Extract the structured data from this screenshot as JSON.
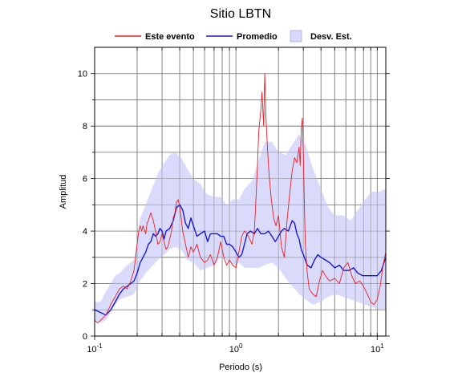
{
  "chart_data": {
    "type": "line",
    "title": "Sitio LBTN",
    "xlabel": "Periodo (s)",
    "ylabel": "Amplitud",
    "x_scale": "log",
    "xlim": [
      0.1,
      11.5
    ],
    "ylim": [
      0,
      11
    ],
    "x_ticks": [
      {
        "value": 0.1,
        "base": "10",
        "exp": "-1"
      },
      {
        "value": 1,
        "base": "10",
        "exp": "0"
      },
      {
        "value": 10,
        "base": "10",
        "exp": "1"
      }
    ],
    "y_ticks": [
      0,
      2,
      4,
      6,
      8,
      10
    ],
    "grid": true,
    "legend_position": "top",
    "legend": [
      {
        "label": "Este evento",
        "color": "#e8202a",
        "kind": "line"
      },
      {
        "label": "Promedio",
        "color": "#1a1ad6",
        "kind": "line"
      },
      {
        "label": "Desv. Est.",
        "color": "#d8d8fa",
        "kind": "patch"
      }
    ],
    "band": {
      "name": "Desv. Est.",
      "color": "#d8d8fa",
      "x": [
        0.1,
        0.11,
        0.12,
        0.13,
        0.14,
        0.15,
        0.17,
        0.19,
        0.21,
        0.23,
        0.25,
        0.28,
        0.31,
        0.34,
        0.37,
        0.41,
        0.45,
        0.5,
        0.56,
        0.62,
        0.7,
        0.78,
        0.86,
        0.95,
        1.05,
        1.15,
        1.3,
        1.45,
        1.6,
        1.8,
        2.0,
        2.25,
        2.5,
        2.8,
        3.1,
        3.5,
        4.0,
        4.5,
        5.0,
        5.7,
        6.5,
        7.3,
        8.2,
        9.2,
        10.3,
        11.5
      ],
      "lower": [
        0.6,
        0.5,
        0.6,
        0.9,
        1.2,
        1.4,
        1.5,
        1.6,
        2.1,
        2.4,
        2.6,
        2.9,
        3.1,
        3.3,
        3.4,
        3.3,
        2.9,
        2.8,
        2.5,
        2.6,
        2.7,
        3.0,
        2.9,
        2.7,
        2.8,
        2.6,
        2.6,
        2.6,
        2.7,
        2.8,
        2.6,
        2.2,
        1.9,
        1.6,
        1.4,
        1.2,
        1.3,
        1.5,
        1.6,
        1.5,
        1.4,
        1.3,
        1.2,
        1.1,
        1.0,
        1.0
      ],
      "upper": [
        1.3,
        1.3,
        1.7,
        2.0,
        2.3,
        2.4,
        2.7,
        2.9,
        4.5,
        5.0,
        5.5,
        6.2,
        6.6,
        6.9,
        7.0,
        6.8,
        6.4,
        6.0,
        5.8,
        5.4,
        5.3,
        5.3,
        5.0,
        5.2,
        5.2,
        5.6,
        5.9,
        6.7,
        7.4,
        7.4,
        7.0,
        6.9,
        7.3,
        7.7,
        7.3,
        6.4,
        5.6,
        4.9,
        4.6,
        4.6,
        4.4,
        4.8,
        5.2,
        5.5,
        5.5,
        5.6
      ]
    },
    "series": [
      {
        "name": "Promedio",
        "color": "#1a1ad6",
        "x": [
          0.1,
          0.11,
          0.12,
          0.13,
          0.14,
          0.15,
          0.16,
          0.17,
          0.18,
          0.19,
          0.2,
          0.21,
          0.22,
          0.23,
          0.24,
          0.25,
          0.26,
          0.27,
          0.28,
          0.29,
          0.3,
          0.31,
          0.32,
          0.34,
          0.36,
          0.38,
          0.4,
          0.42,
          0.44,
          0.46,
          0.48,
          0.5,
          0.53,
          0.56,
          0.6,
          0.63,
          0.66,
          0.7,
          0.74,
          0.78,
          0.82,
          0.86,
          0.9,
          0.95,
          1.0,
          1.05,
          1.1,
          1.15,
          1.2,
          1.27,
          1.35,
          1.42,
          1.5,
          1.6,
          1.7,
          1.8,
          1.9,
          2.0,
          2.1,
          2.2,
          2.35,
          2.5,
          2.6,
          2.7,
          2.8,
          2.9,
          3.0,
          3.2,
          3.4,
          3.6,
          3.8,
          4.0,
          4.3,
          4.6,
          5.0,
          5.4,
          5.8,
          6.3,
          6.8,
          7.3,
          7.9,
          8.5,
          9.2,
          10.0,
          10.7,
          11.5
        ],
        "y": [
          1.0,
          0.9,
          0.8,
          1.0,
          1.3,
          1.6,
          1.8,
          1.9,
          2.0,
          2.1,
          2.4,
          2.8,
          3.0,
          3.2,
          3.5,
          3.6,
          3.9,
          3.8,
          3.9,
          4.1,
          4.0,
          3.7,
          4.0,
          4.1,
          4.4,
          4.9,
          5.0,
          4.8,
          4.3,
          4.1,
          4.5,
          4.2,
          3.8,
          3.9,
          4.0,
          3.6,
          3.9,
          3.9,
          3.9,
          3.8,
          3.8,
          3.5,
          3.5,
          3.4,
          3.2,
          3.0,
          3.1,
          3.5,
          3.9,
          4.0,
          3.9,
          4.1,
          3.9,
          3.9,
          4.0,
          3.8,
          3.6,
          3.8,
          4.0,
          4.1,
          4.0,
          4.4,
          4.3,
          3.9,
          3.7,
          3.3,
          3.1,
          2.7,
          2.6,
          2.9,
          3.1,
          3.0,
          2.9,
          2.8,
          2.6,
          2.7,
          2.5,
          2.5,
          2.6,
          2.4,
          2.3,
          2.3,
          2.3,
          2.3,
          2.5,
          3.0
        ]
      },
      {
        "name": "Este evento",
        "color": "#e8202a",
        "x": [
          0.1,
          0.105,
          0.11,
          0.12,
          0.13,
          0.14,
          0.15,
          0.16,
          0.17,
          0.18,
          0.19,
          0.2,
          0.205,
          0.21,
          0.215,
          0.22,
          0.23,
          0.235,
          0.24,
          0.25,
          0.26,
          0.27,
          0.28,
          0.29,
          0.3,
          0.31,
          0.32,
          0.33,
          0.34,
          0.35,
          0.36,
          0.37,
          0.38,
          0.39,
          0.4,
          0.41,
          0.42,
          0.44,
          0.46,
          0.48,
          0.5,
          0.53,
          0.56,
          0.6,
          0.63,
          0.66,
          0.7,
          0.74,
          0.78,
          0.82,
          0.86,
          0.9,
          0.95,
          1.0,
          1.05,
          1.1,
          1.15,
          1.2,
          1.25,
          1.3,
          1.35,
          1.38,
          1.42,
          1.45,
          1.5,
          1.53,
          1.57,
          1.6,
          1.63,
          1.67,
          1.72,
          1.78,
          1.85,
          1.92,
          2.0,
          2.1,
          2.2,
          2.3,
          2.4,
          2.5,
          2.6,
          2.7,
          2.8,
          2.85,
          2.9,
          2.95,
          3.0,
          3.05,
          3.1,
          3.2,
          3.3,
          3.5,
          3.7,
          3.9,
          4.1,
          4.3,
          4.6,
          5.0,
          5.4,
          5.8,
          6.2,
          6.6,
          7.0,
          7.5,
          8.0,
          8.5,
          9.0,
          9.5,
          10.0,
          10.5,
          11.0,
          11.5
        ],
        "y": [
          0.6,
          0.5,
          0.6,
          0.8,
          1.2,
          1.5,
          1.8,
          1.9,
          1.8,
          2.1,
          2.5,
          3.5,
          4.0,
          4.2,
          4.0,
          4.2,
          3.9,
          4.3,
          4.4,
          4.7,
          4.4,
          4.0,
          3.5,
          3.6,
          3.9,
          3.6,
          3.3,
          3.4,
          3.7,
          4.0,
          4.5,
          4.7,
          5.1,
          5.2,
          4.9,
          4.5,
          4.0,
          3.5,
          3.0,
          3.4,
          3.2,
          3.5,
          3.0,
          2.8,
          2.9,
          3.1,
          2.7,
          3.0,
          3.6,
          3.0,
          2.7,
          2.9,
          2.7,
          2.6,
          3.2,
          3.8,
          4.0,
          3.9,
          3.7,
          3.5,
          4.0,
          5.0,
          6.5,
          7.8,
          8.6,
          9.3,
          8.0,
          10.0,
          8.4,
          7.2,
          6.1,
          5.2,
          4.5,
          4.2,
          4.6,
          3.4,
          3.0,
          4.4,
          5.4,
          6.3,
          6.8,
          6.6,
          7.2,
          6.5,
          7.9,
          8.3,
          7.0,
          5.0,
          3.5,
          2.4,
          1.8,
          1.6,
          1.5,
          2.1,
          2.5,
          2.3,
          2.1,
          2.2,
          2.0,
          2.6,
          2.8,
          2.3,
          2.0,
          2.1,
          1.9,
          1.6,
          1.3,
          1.2,
          1.4,
          1.9,
          2.7,
          3.2
        ]
      }
    ]
  }
}
